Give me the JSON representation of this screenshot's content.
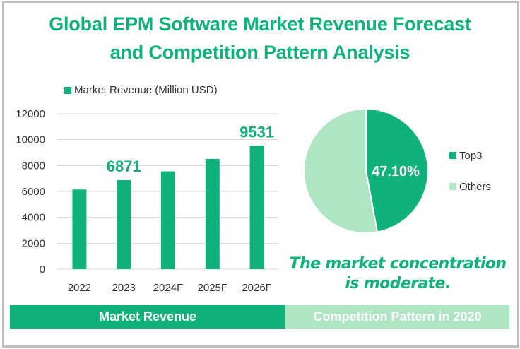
{
  "title_line1": "Global EPM Software Market Revenue Forecast",
  "title_line2": "and Competition Pattern Analysis",
  "colors": {
    "primary": "#10b27c",
    "light": "#aee5c3",
    "grid": "#d9d9d9",
    "frame": "#c0c0c0"
  },
  "chart_data": [
    {
      "type": "bar",
      "title": "",
      "legend": "Market Revenue (Million USD)",
      "legend_position": "top",
      "categories": [
        "2022",
        "2023",
        "2024F",
        "2025F",
        "2026F"
      ],
      "values": [
        6150,
        6871,
        7550,
        8510,
        9531
      ],
      "data_labels": [
        "",
        "6871",
        "",
        "",
        "9531"
      ],
      "yticks": [
        "0",
        "2000",
        "4000",
        "6000",
        "8000",
        "10000",
        "12000"
      ],
      "ylim": [
        0,
        12000
      ],
      "grid": true,
      "xlabel": "",
      "ylabel": ""
    },
    {
      "type": "pie",
      "labels": [
        "Top3",
        "Others"
      ],
      "values": [
        47.1,
        52.9
      ],
      "data_label": "47.10%",
      "legend_position": "right"
    }
  ],
  "note_line1": "The market concentration",
  "note_line2": "is moderate.",
  "footer": {
    "left": "Market Revenue",
    "right": "Competition Pattern in 2020"
  }
}
